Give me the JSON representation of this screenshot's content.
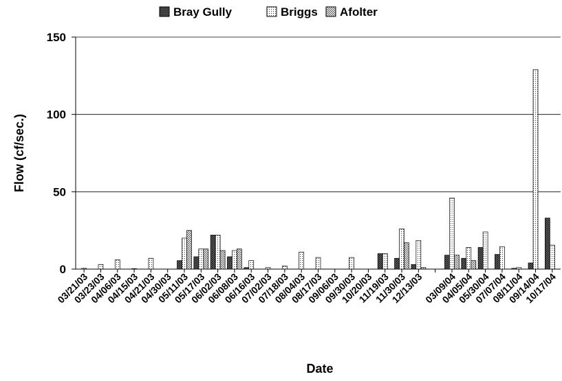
{
  "chart_data": {
    "type": "bar",
    "x_label": "Date",
    "y_label": "Flow (cf/sec.)",
    "categories": [
      "03/21/03",
      "03/23/03",
      "04/06/03",
      "04/15/03",
      "04/21/03",
      "04/30/03",
      "05/11/03",
      "05/17/03",
      "06/02/03",
      "06/08/03",
      "06/16/03",
      "07/02/03",
      "07/18/03",
      "08/04/03",
      "08/17/03",
      "09/06/03",
      "09/30/03",
      "10/20/03",
      "11/19/03",
      "11/30/03",
      "12/13/03",
      null,
      "03/09/04",
      "04/05/04",
      "05/30/04",
      "07/07/04",
      "08/11/04",
      "09/14/04",
      "10/17/04"
    ],
    "series": [
      {
        "name": "Bray Gully",
        "color": "#555555",
        "values": [
          0,
          0,
          0,
          0,
          0,
          0,
          5.5,
          8,
          22,
          8,
          1,
          0,
          0,
          0,
          0,
          0,
          0,
          0,
          10,
          7,
          3,
          0,
          9,
          7,
          14,
          9.5,
          0.5,
          4,
          33
        ]
      },
      {
        "name": "Briggs",
        "color": "#f4f4f4",
        "values": [
          0.5,
          3,
          6,
          0.3,
          7,
          0,
          20,
          13,
          22,
          12,
          5.5,
          1,
          2,
          11,
          7.5,
          0,
          7.5,
          0,
          10,
          26,
          18.5,
          0,
          46,
          14,
          24,
          14.5,
          1,
          129,
          15.5
        ]
      },
      {
        "name": "Afolter",
        "color": "#bbbbbb",
        "values": [
          0,
          0,
          0,
          0,
          0,
          0,
          25,
          13,
          12,
          13,
          0,
          0,
          0,
          0,
          0,
          0,
          0,
          0,
          0,
          17,
          1,
          0,
          9,
          5.5,
          0,
          0,
          0,
          0,
          0
        ]
      }
    ],
    "ylim": [
      0,
      150
    ],
    "yticks": [
      0,
      50,
      100,
      150
    ],
    "grid": true
  }
}
